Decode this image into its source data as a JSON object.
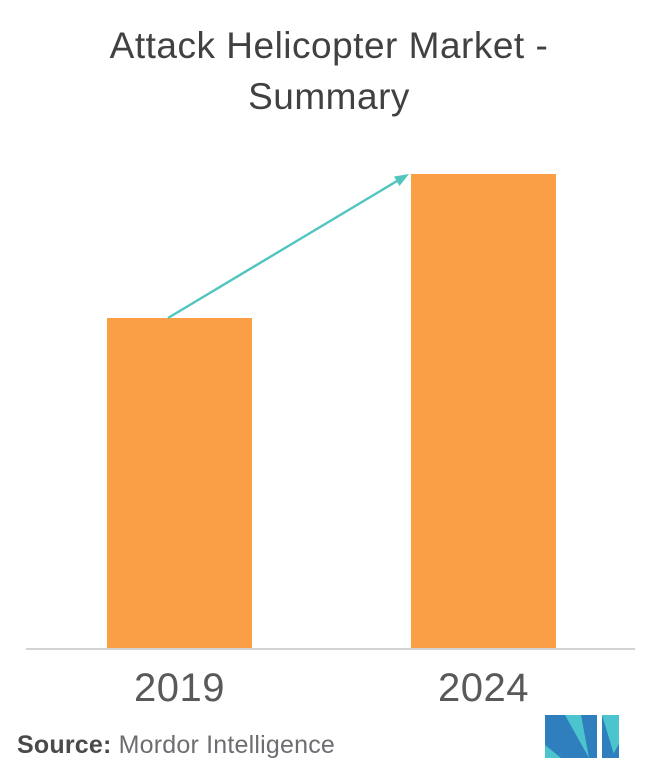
{
  "page": {
    "background": "#ffffff"
  },
  "title": {
    "line1": "Attack Helicopter Market -",
    "line2": "Summary",
    "color": "#414042"
  },
  "chart_data": {
    "type": "bar",
    "title": "Attack Helicopter Market - Summary",
    "categories": [
      "2019",
      "2024"
    ],
    "values": [
      330,
      474
    ],
    "value_note": "no numeric axis shown; values are relative bar heights in pixels",
    "xlabel": "",
    "ylabel": "",
    "ylim": [
      0,
      474
    ],
    "grid": false,
    "legend": "none",
    "bar_color": "#FA9F46",
    "label_color": "#58595B",
    "axis_line_color": "#D1D3D4",
    "annotations": [
      {
        "type": "growth-arrow",
        "from": "2019",
        "to": "2024",
        "color": "#52C5BF"
      }
    ]
  },
  "source": {
    "label": "Source:",
    "text": " Mordor Intelligence"
  },
  "logo": {
    "name": "Mordor Intelligence logo",
    "teal": "#4BC4CE",
    "blue": "#2F7FBE"
  }
}
